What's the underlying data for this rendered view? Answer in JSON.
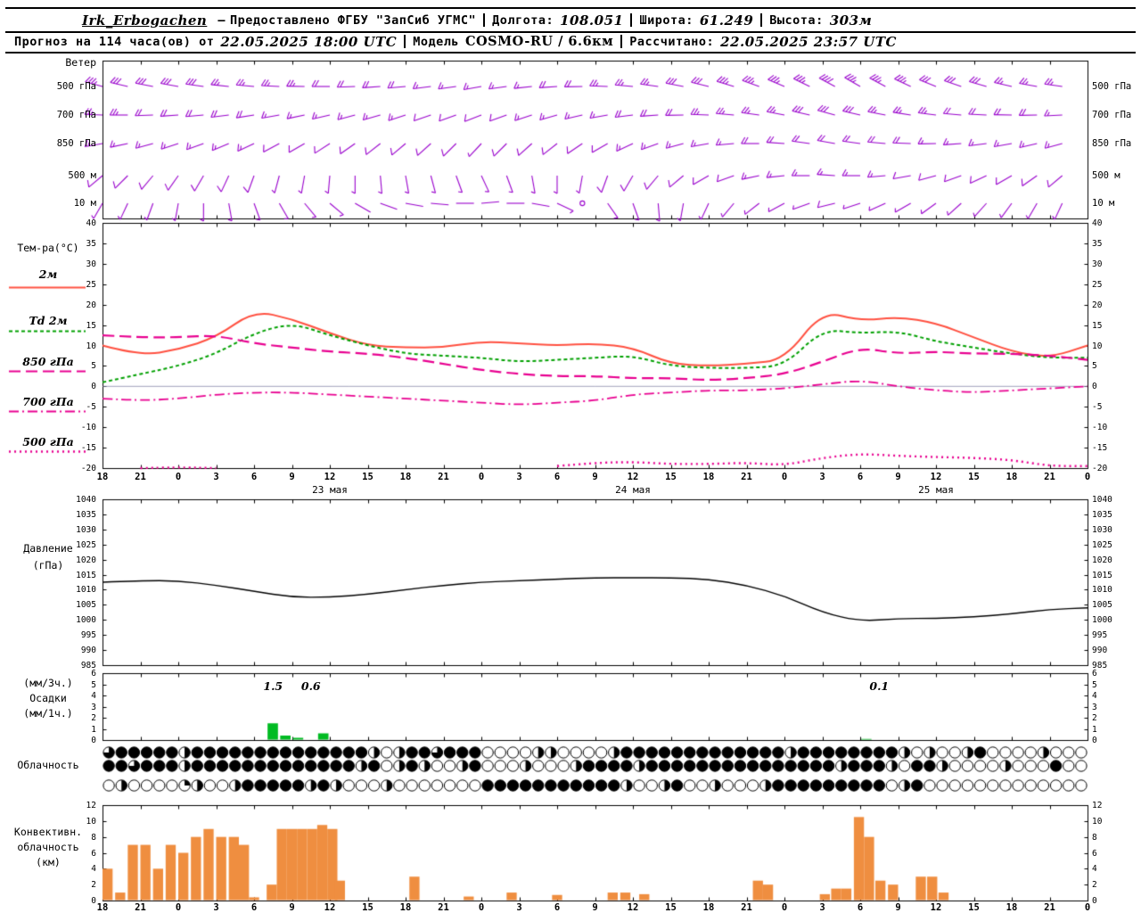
{
  "header": {
    "station": "Irk_Erbogachen",
    "dash": "—",
    "provider": "Предоставлено ФГБУ \"ЗапСиб УГМС\"",
    "lon_label": "Долгота:",
    "lon": "108.051",
    "lat_label": "Широта:",
    "lat": "61.249",
    "alt_label": "Высота:",
    "alt": "303м",
    "forecast_label": "Прогноз на 114 часа(ов) от",
    "forecast_time": "22.05.2025 18:00 UTC",
    "model_label": "Модель",
    "model": "COSMO-RU / 6.6км",
    "calc_label": "Рассчитано:",
    "calc_time": "22.05.2025 23:57 UTC"
  },
  "panels": {
    "wind": {
      "label": "Ветер",
      "levels": [
        "500 гПа",
        "700 гПа",
        "850 гПа",
        "500 м",
        "10 м"
      ]
    },
    "temp": {
      "label": "Тем-ра(°C)",
      "legend": [
        "2м",
        "Td 2м",
        "850 гПа",
        "700 гПа",
        "500 гПа"
      ]
    },
    "pressure": {
      "label_1": "Давление",
      "label_2": "(гПа)"
    },
    "precip": {
      "label_1": "(мм/3ч.)",
      "label_2": "Осадки",
      "label_3": "(мм/1ч.)"
    },
    "clouds": {
      "label": "Облачность"
    },
    "conv": {
      "label_1": "Конвективн.",
      "label_2": "облачность",
      "label_3": "(км)"
    }
  },
  "axes": {
    "hour_labels": [
      "18",
      "21",
      "0",
      "3",
      "6",
      "9",
      "12",
      "15",
      "18",
      "21",
      "0",
      "3",
      "6",
      "9",
      "12",
      "15",
      "18",
      "21",
      "0",
      "3",
      "6",
      "9",
      "12",
      "15",
      "18",
      "21",
      "0"
    ],
    "date_labels": [
      {
        "label": "23 мая",
        "hour": 18
      },
      {
        "label": "24 мая",
        "hour": 42
      },
      {
        "label": "25 мая",
        "hour": 66
      }
    ]
  },
  "chart_data": [
    {
      "type": "other",
      "subtype": "wind_barbs",
      "title": "Ветер",
      "color": "#9900cc",
      "hour_step": 2,
      "levels": [
        {
          "name": "500 гПа",
          "dirs": [
            285,
            283,
            281,
            280,
            278,
            276,
            275,
            273,
            271,
            270,
            268,
            266,
            265,
            263,
            262,
            260,
            262,
            264,
            266,
            269,
            272,
            275,
            278,
            281,
            284,
            287,
            290,
            293,
            296,
            298,
            300,
            298,
            295,
            292,
            289,
            286,
            283,
            280,
            278
          ],
          "speeds_kt": [
            35,
            33,
            32,
            30,
            30,
            28,
            27,
            25,
            24,
            22,
            21,
            20,
            19,
            18,
            17,
            16,
            17,
            18,
            20,
            22,
            24,
            26,
            28,
            30,
            32,
            34,
            35,
            37,
            38,
            40,
            38,
            36,
            34,
            32,
            30,
            29,
            27,
            26,
            25
          ]
        },
        {
          "name": "700 гПа",
          "dirs": [
            272,
            270,
            268,
            266,
            265,
            263,
            261,
            260,
            258,
            257,
            255,
            254,
            252,
            251,
            250,
            249,
            250,
            252,
            254,
            257,
            260,
            263,
            266,
            269,
            272,
            275,
            278,
            281,
            283,
            285,
            283,
            281,
            279,
            277,
            275,
            273,
            271,
            269,
            267
          ],
          "speeds_kt": [
            25,
            24,
            23,
            22,
            21,
            20,
            19,
            18,
            17,
            16,
            15,
            14,
            14,
            13,
            12,
            12,
            13,
            14,
            15,
            17,
            18,
            20,
            21,
            23,
            24,
            26,
            27,
            28,
            30,
            30,
            29,
            27,
            26,
            24,
            23,
            21,
            20,
            19,
            18
          ]
        },
        {
          "name": "850 гПа",
          "dirs": [
            260,
            258,
            255,
            252,
            250,
            247,
            245,
            242,
            240,
            237,
            235,
            232,
            230,
            228,
            225,
            223,
            225,
            228,
            232,
            236,
            240,
            245,
            250,
            255,
            260,
            265,
            270,
            274,
            278,
            280,
            278,
            275,
            272,
            269,
            266,
            263,
            260,
            257,
            255
          ],
          "speeds_kt": [
            18,
            17,
            16,
            16,
            15,
            14,
            14,
            13,
            12,
            12,
            11,
            10,
            10,
            9,
            9,
            8,
            9,
            10,
            11,
            12,
            13,
            14,
            15,
            16,
            17,
            18,
            19,
            20,
            21,
            22,
            21,
            20,
            19,
            18,
            17,
            16,
            15,
            14,
            14
          ]
        },
        {
          "name": "500 м",
          "dirs": [
            230,
            225,
            220,
            215,
            210,
            205,
            200,
            195,
            190,
            185,
            180,
            175,
            170,
            165,
            160,
            155,
            160,
            170,
            180,
            190,
            200,
            210,
            220,
            230,
            240,
            250,
            258,
            264,
            270,
            274,
            270,
            265,
            260,
            255,
            250,
            245,
            240,
            235,
            230
          ],
          "speeds_kt": [
            12,
            11,
            11,
            10,
            10,
            9,
            9,
            8,
            8,
            7,
            7,
            6,
            6,
            5,
            5,
            5,
            5,
            6,
            7,
            8,
            9,
            10,
            10,
            11,
            12,
            13,
            14,
            15,
            15,
            16,
            15,
            14,
            13,
            12,
            11,
            10,
            10,
            9,
            9
          ]
        },
        {
          "name": "10 м",
          "dirs": [
            210,
            205,
            200,
            190,
            180,
            170,
            160,
            150,
            140,
            130,
            120,
            110,
            100,
            95,
            90,
            85,
            90,
            100,
            115,
            130,
            145,
            160,
            175,
            190,
            205,
            220,
            232,
            242,
            250,
            256,
            252,
            246,
            240,
            234,
            228,
            222,
            216,
            210,
            205
          ],
          "speeds_kt": [
            7,
            7,
            6,
            6,
            5,
            5,
            5,
            4,
            4,
            4,
            3,
            3,
            3,
            3,
            2,
            2,
            3,
            3,
            4,
            0,
            5,
            5,
            5,
            6,
            6,
            7,
            7,
            8,
            8,
            9,
            8,
            8,
            7,
            7,
            6,
            6,
            5,
            5,
            5
          ]
        }
      ]
    },
    {
      "type": "line",
      "title": "Тем-ра(°C)",
      "ylim": [
        -20,
        40
      ],
      "yticks": [
        40,
        35,
        30,
        25,
        20,
        15,
        10,
        5,
        0,
        -5,
        -10,
        -15,
        -20
      ],
      "x_hours": [
        0,
        3,
        6,
        9,
        12,
        15,
        18,
        21,
        24,
        27,
        30,
        33,
        36,
        39,
        42,
        45,
        48,
        51,
        54,
        57,
        60,
        63,
        66,
        69,
        72,
        75,
        78
      ],
      "series": [
        {
          "name": "2м",
          "color": "#ff5040",
          "dash": [],
          "width": 2,
          "values": [
            10,
            7.5,
            9,
            12,
            18.5,
            16.5,
            13,
            10,
            9.5,
            9.5,
            11,
            10.5,
            10,
            10.5,
            9.5,
            5.5,
            5,
            5.5,
            6.5,
            18.5,
            16,
            17,
            15.5,
            12,
            8.5,
            7,
            10
          ]
        },
        {
          "name": "Td 2м",
          "color": "#00a000",
          "dash": [
            4,
            3
          ],
          "width": 2,
          "values": [
            1,
            3,
            5,
            8,
            13,
            15.5,
            12.5,
            10,
            8,
            7.5,
            7,
            6,
            6.5,
            7,
            7.5,
            5,
            4.5,
            4.5,
            5,
            14,
            13,
            13.5,
            11,
            9.5,
            8,
            7,
            7
          ]
        },
        {
          "name": "850 гПа",
          "color": "#e80090",
          "dash": [
            13,
            6
          ],
          "width": 2.2,
          "values": [
            12.5,
            12,
            12,
            12.5,
            10.5,
            9.5,
            8.5,
            8,
            7,
            5.5,
            4,
            3,
            2.5,
            2.5,
            2,
            2,
            1.5,
            2,
            3,
            6,
            9.5,
            8,
            8.5,
            8,
            8,
            7.5,
            6.5
          ]
        },
        {
          "name": "700 гПа",
          "color": "#e80090",
          "dash": [
            11,
            4,
            2,
            4
          ],
          "width": 1.8,
          "values": [
            -3,
            -3.5,
            -3,
            -2,
            -1.5,
            -1.5,
            -2,
            -2.5,
            -3,
            -3.5,
            -4,
            -4.5,
            -4,
            -3.5,
            -2,
            -1.5,
            -1,
            -1,
            -0.5,
            0.5,
            1.5,
            0,
            -1,
            -1.5,
            -1,
            -0.5,
            0
          ]
        },
        {
          "name": "500 гПа",
          "color": "#e80090",
          "dash": [
            2,
            4
          ],
          "width": 2.4,
          "values": [
            null,
            -20,
            -19.8,
            -20,
            null,
            null,
            null,
            null,
            null,
            null,
            null,
            null,
            -19.5,
            -18.7,
            -18.5,
            -19,
            -19,
            -18.7,
            -19.3,
            -17.5,
            -16.5,
            -17,
            -17.3,
            -17.5,
            -18,
            -19.5,
            -19.5
          ]
        }
      ]
    },
    {
      "type": "line",
      "title": "Давление (гПа)",
      "ylim": [
        985,
        1040
      ],
      "yticks": [
        1040,
        1035,
        1030,
        1025,
        1020,
        1015,
        1010,
        1005,
        1000,
        995,
        990,
        985
      ],
      "color": "#000000",
      "x_hours": [
        0,
        3,
        6,
        9,
        12,
        15,
        18,
        21,
        24,
        27,
        30,
        33,
        36,
        39,
        42,
        45,
        48,
        51,
        54,
        57,
        60,
        63,
        66,
        69,
        72,
        75,
        78
      ],
      "values": [
        1012.5,
        1013,
        1013,
        1011.5,
        1009.5,
        1007.5,
        1007.5,
        1008.5,
        1010,
        1011.5,
        1012.5,
        1013,
        1013.5,
        1014,
        1014,
        1014,
        1013.5,
        1011.5,
        1008,
        1002.5,
        999.5,
        1000.5,
        1000.5,
        1001,
        1002,
        1003.5,
        1004
      ]
    },
    {
      "type": "bar",
      "title": "Осадки",
      "units": [
        "мм/3ч.",
        "мм/1ч."
      ],
      "ylim": [
        0,
        6
      ],
      "yticks": [
        6,
        5,
        4,
        3,
        2,
        1,
        0
      ],
      "color": "#00bb22",
      "bars": [
        [
          13,
          1.5
        ],
        [
          14,
          0.4
        ],
        [
          15,
          0.2
        ],
        [
          17,
          0.6
        ],
        [
          60,
          0.1
        ]
      ],
      "bar_labels": [
        [
          13.5,
          "1.5"
        ],
        [
          16.5,
          "0.6"
        ],
        [
          61.5,
          "0.1"
        ]
      ]
    },
    {
      "type": "other",
      "subtype": "cloud_cover_rows",
      "title": "Облачность",
      "scale": "0=ясно, 4=сплошная; доли круга по четвертям, почасово",
      "rows": [
        {
          "name": "верхний ряд",
          "fills_quarters": "344444244444444444444202443444000022000024444444444444244444444202002400002000"
        },
        {
          "name": "средний ряд",
          "fills_quarters": "443444244444444444442402420024000200024444244444444444444424442044200002000400"
        },
        {
          "name": "нижний ряд",
          "fills_quarters": "020000120024444424200020000000444444444442002400200024444444440240000000000000"
        }
      ]
    },
    {
      "type": "bar",
      "title": "Конвективная облачность (км)",
      "ylim": [
        0,
        12
      ],
      "yticks": [
        12,
        10,
        8,
        6,
        4,
        2,
        0
      ],
      "color": "#ef8e40",
      "bars": [
        [
          0,
          4
        ],
        [
          1,
          1
        ],
        [
          2,
          7
        ],
        [
          3,
          7
        ],
        [
          4,
          4
        ],
        [
          5,
          7
        ],
        [
          6,
          6
        ],
        [
          7,
          8
        ],
        [
          8,
          9
        ],
        [
          9,
          8
        ],
        [
          10,
          8
        ],
        [
          10.8,
          7
        ],
        [
          11.6,
          0.4
        ],
        [
          13,
          2
        ],
        [
          13.8,
          9
        ],
        [
          14.6,
          9
        ],
        [
          15.4,
          9
        ],
        [
          16.2,
          9
        ],
        [
          17,
          9.5
        ],
        [
          17.8,
          9
        ],
        [
          18.4,
          2.5
        ],
        [
          24.3,
          3
        ],
        [
          28.6,
          0.5
        ],
        [
          32,
          1
        ],
        [
          35.6,
          0.7
        ],
        [
          40,
          1
        ],
        [
          41,
          1
        ],
        [
          42.5,
          0.8
        ],
        [
          51.5,
          2.5
        ],
        [
          52.3,
          2
        ],
        [
          56.8,
          0.8
        ],
        [
          57.7,
          1.5
        ],
        [
          58.5,
          1.5
        ],
        [
          59.5,
          10.5
        ],
        [
          60.3,
          8
        ],
        [
          61.2,
          2.5
        ],
        [
          62.2,
          2
        ],
        [
          64.4,
          3
        ],
        [
          65.3,
          3
        ],
        [
          66.2,
          1
        ]
      ]
    }
  ]
}
